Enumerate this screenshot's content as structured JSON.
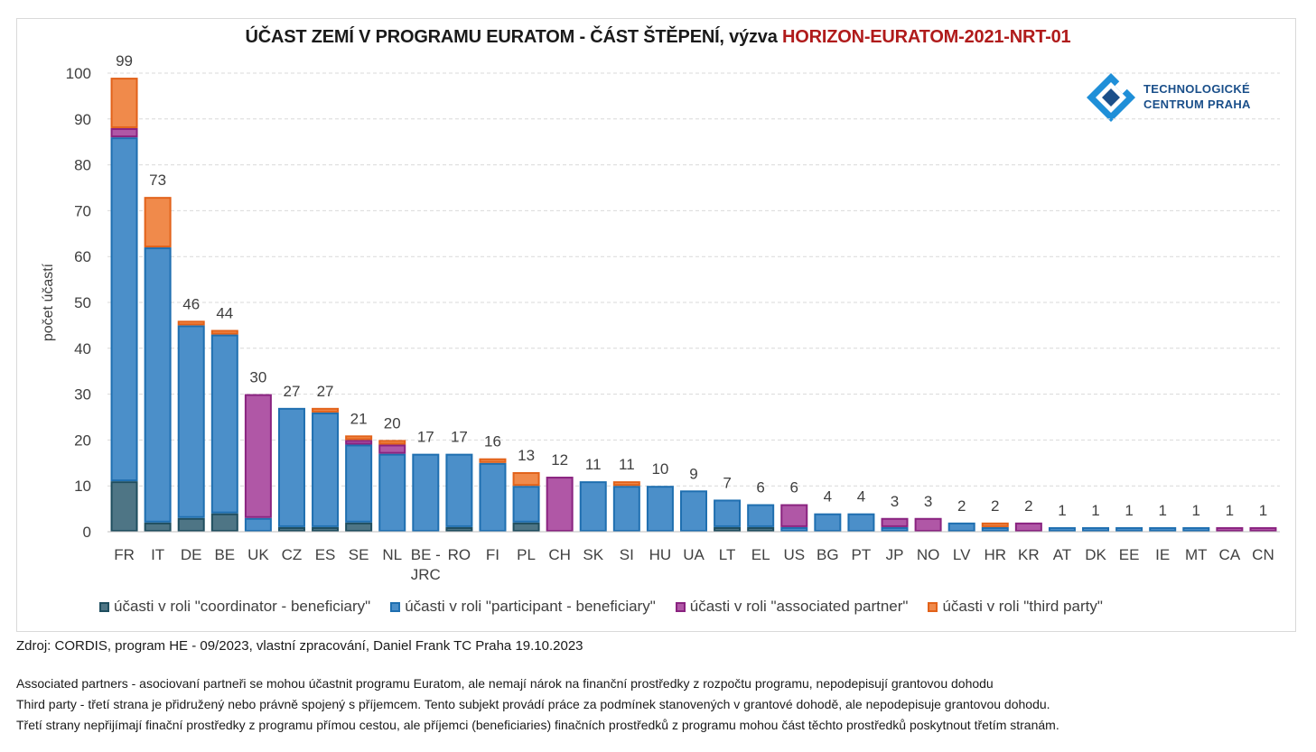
{
  "title": {
    "main": "ÚČAST ZEMÍ V PROGRAMU EURATOM -  ČÁST ŠTĚPENÍ, výzva ",
    "highlight": "HORIZON-EURATOM-2021-NRT-01"
  },
  "logo": {
    "line1": "TECHNOLOGICKÉ",
    "line2": "CENTRUM PRAHA"
  },
  "colors": {
    "coordinator": "#4e7585",
    "coordinator_border": "#1f4e5f",
    "participant": "#4b8fc9",
    "participant_border": "#1f6fb0",
    "associated": "#b057a6",
    "associated_border": "#8a2380",
    "third": "#f08a4b",
    "third_border": "#e2621a"
  },
  "chart_data": {
    "type": "bar",
    "stacked": true,
    "ylabel": "počet účastí",
    "ylim": [
      0,
      100
    ],
    "yticks": [
      0,
      10,
      20,
      30,
      40,
      50,
      60,
      70,
      80,
      90,
      100
    ],
    "grid": true,
    "categories": [
      "FR",
      "IT",
      "DE",
      "BE",
      "UK",
      "CZ",
      "ES",
      "SE",
      "NL",
      "BE - JRC",
      "RO",
      "FI",
      "PL",
      "CH",
      "SK",
      "SI",
      "HU",
      "UA",
      "LT",
      "EL",
      "US",
      "BG",
      "PT",
      "JP",
      "NO",
      "LV",
      "HR",
      "KR",
      "AT",
      "DK",
      "EE",
      "IE",
      "MT",
      "CA",
      "CN"
    ],
    "totals": [
      99,
      73,
      46,
      44,
      30,
      27,
      27,
      21,
      20,
      17,
      17,
      16,
      13,
      12,
      11,
      11,
      10,
      9,
      7,
      6,
      6,
      4,
      4,
      3,
      3,
      2,
      2,
      2,
      1,
      1,
      1,
      1,
      1,
      1,
      1
    ],
    "series": [
      {
        "name": "účasti v roli \"coordinator - beneficiary\"",
        "key": "coordinator",
        "values": [
          11,
          2,
          3,
          4,
          0,
          1,
          1,
          2,
          0,
          0,
          1,
          0,
          2,
          0,
          0,
          0,
          0,
          0,
          1,
          1,
          0,
          0,
          0,
          0,
          0,
          0,
          0,
          0,
          0,
          0,
          0,
          0,
          0,
          0,
          0
        ]
      },
      {
        "name": "účasti v roli \"participant - beneficiary\"",
        "key": "participant",
        "values": [
          75,
          60,
          42,
          39,
          3,
          26,
          25,
          17,
          17,
          17,
          16,
          15,
          8,
          0,
          11,
          10,
          10,
          9,
          6,
          5,
          1,
          4,
          4,
          1,
          0,
          2,
          1,
          0,
          1,
          1,
          1,
          1,
          1,
          0,
          0
        ]
      },
      {
        "name": "účasti v roli \"associated partner\"",
        "key": "associated",
        "values": [
          2,
          0,
          0,
          0,
          27,
          0,
          0,
          1,
          2,
          0,
          0,
          0,
          0,
          12,
          0,
          0,
          0,
          0,
          0,
          0,
          5,
          0,
          0,
          2,
          3,
          0,
          0,
          2,
          0,
          0,
          0,
          0,
          0,
          1,
          1
        ]
      },
      {
        "name": "účasti v roli \"third party\"",
        "key": "third",
        "values": [
          11,
          11,
          1,
          1,
          0,
          0,
          1,
          1,
          1,
          0,
          0,
          1,
          3,
          0,
          0,
          1,
          0,
          0,
          0,
          0,
          0,
          0,
          0,
          0,
          0,
          0,
          1,
          0,
          0,
          0,
          0,
          0,
          0,
          0,
          0
        ]
      }
    ],
    "legend_position": "bottom"
  },
  "footer": {
    "source": "Zdroj: CORDIS, program HE - 09/2023, vlastní zpracování, Daniel Frank TC Praha 19.10.2023",
    "note1": "Associated partners - asociovaní partneři se mohou účastnit programu Euratom, ale nemají nárok na finanční prostředky z rozpočtu programu, nepodepisují grantovou dohodu",
    "note2": "Third party - třetí strana je přidružený nebo právně spojený s příjemcem. Tento subjekt provádí práce za podmínek stanovených v grantové dohodě, ale nepodepisuje grantovou dohodu.",
    "note3": "Třetí strany nepřijímají finační prostředky z programu přímou cestou, ale příjemci (beneficiaries) finačních prostředků z programu mohou  část těchto prostředků poskytnout třetím stranám."
  }
}
